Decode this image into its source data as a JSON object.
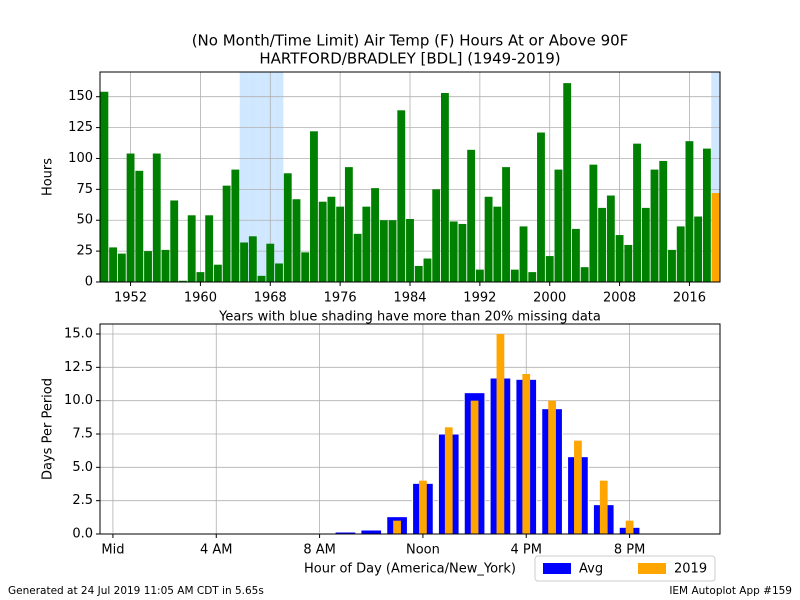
{
  "chart_data": [
    {
      "type": "bar",
      "title": "(No Month/Time Limit) Air Temp (F) Hours At or Above 90F",
      "subtitle": "HARTFORD/BRADLEY [BDL] (1949-2019)",
      "ylabel": "Hours",
      "annotation": "Years with blue shading have more than 20% missing data",
      "x": [
        1949,
        1950,
        1951,
        1952,
        1953,
        1954,
        1955,
        1956,
        1957,
        1958,
        1959,
        1960,
        1961,
        1962,
        1963,
        1964,
        1965,
        1966,
        1967,
        1968,
        1969,
        1970,
        1971,
        1972,
        1973,
        1974,
        1975,
        1976,
        1977,
        1978,
        1979,
        1980,
        1981,
        1982,
        1983,
        1984,
        1985,
        1986,
        1987,
        1988,
        1989,
        1990,
        1991,
        1992,
        1993,
        1994,
        1995,
        1996,
        1997,
        1998,
        1999,
        2000,
        2001,
        2002,
        2003,
        2004,
        2005,
        2006,
        2007,
        2008,
        2009,
        2010,
        2011,
        2012,
        2013,
        2014,
        2015,
        2016,
        2017,
        2018,
        2019
      ],
      "values": [
        154,
        28,
        23,
        104,
        90,
        25,
        104,
        26,
        66,
        1,
        54,
        8,
        54,
        14,
        78,
        91,
        32,
        37,
        5,
        31,
        15,
        88,
        67,
        24,
        122,
        65,
        69,
        61,
        93,
        39,
        61,
        76,
        50,
        50,
        139,
        51,
        13,
        19,
        75,
        153,
        49,
        47,
        107,
        10,
        69,
        61,
        93,
        10,
        45,
        8,
        121,
        21,
        91,
        161,
        43,
        12,
        95,
        60,
        70,
        38,
        30,
        112,
        60,
        91,
        98,
        26,
        45,
        114,
        53,
        108,
        72
      ],
      "colors": [
        "green",
        "green",
        "green",
        "green",
        "green",
        "green",
        "green",
        "green",
        "green",
        "green",
        "green",
        "green",
        "green",
        "green",
        "green",
        "green",
        "green",
        "green",
        "green",
        "green",
        "green",
        "green",
        "green",
        "green",
        "green",
        "green",
        "green",
        "green",
        "green",
        "green",
        "green",
        "green",
        "green",
        "green",
        "green",
        "green",
        "green",
        "green",
        "green",
        "green",
        "green",
        "green",
        "green",
        "green",
        "green",
        "green",
        "green",
        "green",
        "green",
        "green",
        "green",
        "green",
        "green",
        "green",
        "green",
        "green",
        "green",
        "green",
        "green",
        "green",
        "green",
        "green",
        "green",
        "green",
        "green",
        "green",
        "green",
        "green",
        "green",
        "green",
        "orange"
      ],
      "shaded_years": [
        1965,
        1966,
        1967,
        1968,
        1969,
        2019
      ],
      "shade_color": "#d0e8ff",
      "xlim": [
        1948.5,
        2019.5
      ],
      "xticks": [
        1952,
        1960,
        1968,
        1976,
        1984,
        1992,
        2000,
        2008,
        2016
      ],
      "ylim": [
        0,
        170
      ],
      "yticks": [
        0,
        25,
        50,
        75,
        100,
        125,
        150
      ],
      "grid": true
    },
    {
      "type": "bar",
      "xlabel": "Hour of Day (America/New_York)",
      "ylabel": "Days Per Period",
      "x": [
        0,
        1,
        2,
        3,
        4,
        5,
        6,
        7,
        8,
        9,
        10,
        11,
        12,
        13,
        14,
        15,
        16,
        17,
        18,
        19,
        20,
        21,
        22,
        23
      ],
      "series": [
        {
          "name": "Avg",
          "color": "blue",
          "values": [
            0.05,
            0.02,
            0,
            0,
            0,
            0,
            0,
            0.02,
            0.05,
            0.15,
            0.3,
            1.3,
            3.8,
            7.5,
            10.6,
            11.7,
            11.6,
            9.4,
            5.8,
            2.2,
            0.5,
            0.05,
            0.05,
            0.05
          ]
        },
        {
          "name": "2019",
          "color": "orange",
          "values": [
            0,
            0,
            0,
            0,
            0,
            0,
            0,
            0,
            0,
            0,
            0,
            1,
            4,
            8,
            10,
            15,
            12,
            10,
            7,
            4,
            1,
            0,
            0,
            0
          ]
        }
      ],
      "xlim": [
        -0.5,
        23.5
      ],
      "xticks": [
        {
          "value": 0,
          "label": "Mid"
        },
        {
          "value": 4,
          "label": "4 AM"
        },
        {
          "value": 8,
          "label": "8 AM"
        },
        {
          "value": 12,
          "label": "Noon"
        },
        {
          "value": 16,
          "label": "4 PM"
        },
        {
          "value": 20,
          "label": "8 PM"
        }
      ],
      "ylim": [
        0,
        15.75
      ],
      "yticks": [
        {
          "value": 0,
          "label": "0.0"
        },
        {
          "value": 2.5,
          "label": "2.5"
        },
        {
          "value": 5,
          "label": "5.0"
        },
        {
          "value": 7.5,
          "label": "7.5"
        },
        {
          "value": 10,
          "label": "10.0"
        },
        {
          "value": 12.5,
          "label": "12.5"
        },
        {
          "value": 15,
          "label": "15.0"
        }
      ],
      "grid": true,
      "legend": "lower right"
    }
  ],
  "footer": {
    "left": "Generated at 24 Jul 2019 11:05 AM CDT in 5.65s",
    "right": "IEM Autoplot App #159"
  }
}
